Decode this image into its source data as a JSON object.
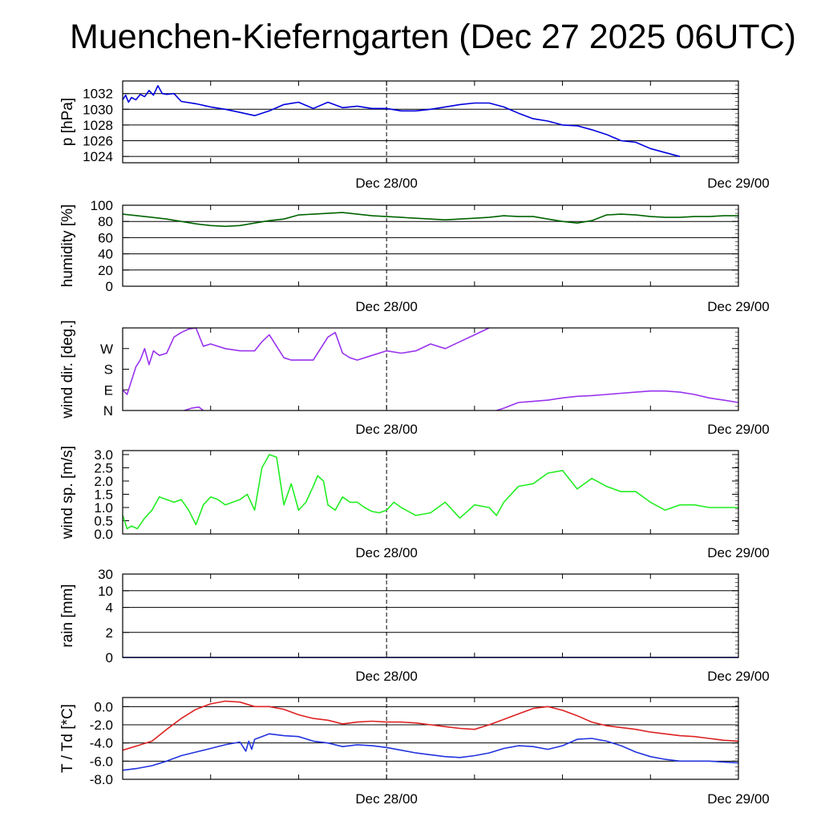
{
  "title": "Muenchen-Kieferngarten (Dec 27 2025 06UTC)",
  "chart_data": [
    {
      "type": "line",
      "id": "pressure",
      "ylabel": "p [hPa]",
      "ylim": [
        1023.2,
        1033.6
      ],
      "yticks": [
        "1024",
        "1026",
        "1028",
        "1030",
        "1032"
      ],
      "ytick_values": [
        1024,
        1026,
        1028,
        1030,
        1032
      ],
      "grid": true,
      "x_unit": "hours since Dec 27 06UTC",
      "xlim": [
        0,
        42
      ],
      "xtick_labels": [
        {
          "x": 18,
          "label": "Dec 28/00"
        },
        {
          "x": 42,
          "label": "Dec 29/00"
        }
      ],
      "series": [
        {
          "name": "p",
          "color": "#0000dd",
          "x": [
            0,
            0.2,
            0.4,
            0.6,
            0.9,
            1.2,
            1.5,
            1.8,
            2.1,
            2.4,
            2.7,
            3,
            3.5,
            4,
            5,
            6,
            7,
            8,
            9,
            10,
            11,
            12,
            13,
            14,
            15,
            16,
            17,
            18,
            19,
            20,
            21,
            22,
            23,
            24,
            25,
            26,
            27,
            28,
            29,
            30,
            31,
            32,
            33,
            34,
            35,
            36,
            37,
            38,
            39,
            40,
            41,
            42
          ],
          "values": [
            1031.2,
            1031.8,
            1030.9,
            1031.5,
            1031.2,
            1031.9,
            1031.6,
            1032.4,
            1031.8,
            1033,
            1032,
            1031.9,
            1032,
            1031,
            1030.7,
            1030.3,
            1030,
            1029.6,
            1029.2,
            1029.8,
            1030.6,
            1030.9,
            1030.1,
            1030.9,
            1030.2,
            1030.4,
            1030.1,
            1030.1,
            1029.8,
            1029.8,
            1030,
            1030.3,
            1030.6,
            1030.8,
            1030.8,
            1030.3,
            1029.5,
            1028.8,
            1028.5,
            1028,
            1027.9,
            1027.4,
            1026.8,
            1026,
            1025.8,
            1025,
            1024.5,
            1024,
            null,
            null,
            null,
            null
          ]
        }
      ]
    },
    {
      "type": "line",
      "id": "humidity",
      "ylabel": "humidity [%]",
      "ylim": [
        0,
        100
      ],
      "yticks": [
        "0",
        "20",
        "40",
        "60",
        "80",
        "100"
      ],
      "ytick_values": [
        0,
        20,
        40,
        60,
        80,
        100
      ],
      "grid": true,
      "xlim": [
        0,
        42
      ],
      "xtick_labels": [
        {
          "x": 18,
          "label": "Dec 28/00"
        },
        {
          "x": 42,
          "label": "Dec 29/00"
        }
      ],
      "series": [
        {
          "name": "humidity",
          "color": "#006400",
          "x": [
            0,
            1,
            2,
            3,
            4,
            5,
            6,
            7,
            8,
            9,
            10,
            11,
            12,
            13,
            14,
            15,
            16,
            17,
            18,
            19,
            20,
            21,
            22,
            23,
            24,
            25,
            26,
            27,
            28,
            29,
            30,
            31,
            32,
            33,
            34,
            35,
            36,
            37,
            38,
            39,
            40,
            41,
            42
          ],
          "values": [
            89,
            87,
            85,
            83,
            80,
            77,
            75,
            74,
            75,
            78,
            81,
            83,
            88,
            89,
            90,
            91,
            89,
            87,
            86,
            85,
            84,
            83,
            82,
            83,
            84,
            85,
            87,
            86,
            86,
            83,
            80,
            78,
            81,
            88,
            89,
            88,
            86,
            85,
            85,
            86,
            86,
            87,
            87
          ]
        }
      ]
    },
    {
      "type": "line",
      "id": "wind-direction",
      "ylabel": "wind dir. [deg.]",
      "ylim": [
        0,
        360
      ],
      "yticks": [
        "N",
        "E",
        "S",
        "W"
      ],
      "ytick_values": [
        0,
        90,
        180,
        270
      ],
      "grid": false,
      "xlim": [
        0,
        42
      ],
      "xtick_labels": [
        {
          "x": 18,
          "label": "Dec 28/00"
        },
        {
          "x": 42,
          "label": "Dec 29/00"
        }
      ],
      "series": [
        {
          "name": "dir-main",
          "color": "#9933ee",
          "x": [
            0,
            0.3,
            0.6,
            0.9,
            1.2,
            1.5,
            1.8,
            2.1,
            2.5,
            3,
            3.5,
            4,
            4.5,
            5,
            5.5,
            6,
            7,
            8,
            9,
            9.5,
            10,
            10.5,
            11,
            11.5,
            12,
            13,
            14,
            14.5,
            15,
            15.5,
            16,
            17,
            18,
            19,
            20,
            21,
            22,
            23,
            24,
            25,
            26,
            27,
            28,
            29,
            30,
            30.5
          ],
          "values": [
            90,
            70,
            130,
            190,
            220,
            270,
            200,
            260,
            240,
            250,
            320,
            340,
            355,
            365,
            280,
            290,
            270,
            260,
            260,
            300,
            330,
            280,
            230,
            220,
            220,
            220,
            320,
            340,
            250,
            230,
            220,
            240,
            260,
            250,
            260,
            290,
            270,
            300,
            330,
            360,
            null,
            null,
            null,
            null,
            null,
            null
          ]
        },
        {
          "name": "dir-wrap-low",
          "color": "#9933ee",
          "x": [
            4.2,
            4.7,
            5.2,
            5.5
          ],
          "values": [
            0,
            10,
            15,
            0
          ]
        },
        {
          "name": "dir-late",
          "color": "#9933ee",
          "x": [
            25.5,
            26,
            27,
            28,
            29,
            30,
            31,
            32,
            33,
            34,
            35,
            36,
            37,
            38,
            39,
            40,
            41,
            42
          ],
          "values": [
            0,
            10,
            35,
            40,
            45,
            55,
            62,
            65,
            70,
            75,
            80,
            85,
            85,
            80,
            70,
            55,
            45,
            35
          ]
        }
      ]
    },
    {
      "type": "line",
      "id": "wind-speed",
      "ylabel": "wind sp. [m/s]",
      "ylim": [
        0,
        3.15
      ],
      "yticks": [
        "0.0",
        "0.5",
        "1.0",
        "1.5",
        "2.0",
        "2.5",
        "3.0"
      ],
      "ytick_values": [
        0,
        0.5,
        1,
        1.5,
        2,
        2.5,
        3
      ],
      "grid": false,
      "xlim": [
        0,
        42
      ],
      "xtick_labels": [
        {
          "x": 18,
          "label": "Dec 28/00"
        },
        {
          "x": 42,
          "label": "Dec 29/00"
        }
      ],
      "series": [
        {
          "name": "wind speed",
          "color": "#22ee22",
          "x": [
            0,
            0.3,
            0.6,
            1,
            1.5,
            2,
            2.5,
            3,
            3.5,
            4,
            4.5,
            5,
            5.5,
            6,
            6.5,
            7,
            7.5,
            8,
            8.5,
            9,
            9.5,
            10,
            10.5,
            11,
            11.5,
            12,
            12.5,
            13,
            13.3,
            13.7,
            14,
            14.5,
            15,
            15.5,
            16,
            16.5,
            17,
            17.5,
            18,
            18.5,
            19,
            20,
            21,
            22,
            23,
            24,
            25,
            25.5,
            26,
            27,
            28,
            29,
            30,
            31,
            32,
            33,
            34,
            35,
            36,
            37,
            38,
            39,
            40,
            41,
            42
          ],
          "values": [
            0.7,
            0.2,
            0.3,
            0.2,
            0.6,
            0.9,
            1.4,
            1.3,
            1.2,
            1.3,
            0.9,
            0.35,
            1.1,
            1.4,
            1.3,
            1.1,
            1.2,
            1.3,
            1.5,
            0.9,
            2.5,
            3.0,
            2.9,
            1.1,
            1.9,
            0.9,
            1.2,
            1.8,
            2.2,
            2.0,
            1.1,
            0.9,
            1.4,
            1.2,
            1.2,
            1.0,
            0.85,
            0.8,
            0.9,
            1.2,
            1.0,
            0.7,
            0.8,
            1.2,
            0.6,
            1.1,
            1.0,
            0.7,
            1.2,
            1.8,
            1.9,
            2.3,
            2.4,
            1.7,
            2.1,
            1.8,
            1.6,
            1.6,
            1.2,
            0.9,
            1.1,
            1.1,
            1.0,
            1.0,
            1.0
          ]
        }
      ]
    },
    {
      "type": "line",
      "id": "rain",
      "ylabel": "rain [mm]",
      "ylim": [
        0,
        1
      ],
      "yticks": [
        "0",
        "2",
        "4",
        "10",
        "30"
      ],
      "ytick_values": [
        0,
        0.3,
        0.6,
        0.8,
        1.0
      ],
      "grid": true,
      "xlim": [
        0,
        42
      ],
      "xtick_labels": [
        {
          "x": 18,
          "label": "Dec 28/00"
        },
        {
          "x": 42,
          "label": "Dec 29/00"
        }
      ],
      "series": [
        {
          "name": "rain",
          "color": "#0000dd",
          "x": [
            0,
            42
          ],
          "values": [
            0,
            0
          ]
        }
      ]
    },
    {
      "type": "line",
      "id": "temperature",
      "ylabel": "T / Td [*C]",
      "ylim": [
        -8.0,
        1.0
      ],
      "yticks": [
        "-8.0",
        "-6.0",
        "-4.0",
        "-2.0",
        "0.0"
      ],
      "ytick_values": [
        -8,
        -6,
        -4,
        -2,
        0
      ],
      "grid": true,
      "xlim": [
        0,
        42
      ],
      "xtick_labels": [
        {
          "x": 18,
          "label": "Dec 28/00"
        },
        {
          "x": 42,
          "label": "Dec 29/00"
        }
      ],
      "series": [
        {
          "name": "T",
          "color": "#dd2222",
          "x": [
            0,
            1,
            2,
            3,
            4,
            5,
            6,
            7,
            8,
            9,
            10,
            11,
            12,
            13,
            14,
            15,
            16,
            17,
            18,
            19,
            20,
            21,
            22,
            23,
            24,
            25,
            26,
            27,
            28,
            29,
            30,
            31,
            32,
            33,
            34,
            35,
            36,
            37,
            38,
            39,
            40,
            41,
            42
          ],
          "values": [
            -4.8,
            -4.3,
            -3.8,
            -2.5,
            -1.3,
            -0.3,
            0.3,
            0.6,
            0.5,
            0.0,
            0.0,
            -0.3,
            -0.9,
            -1.3,
            -1.5,
            -1.9,
            -1.7,
            -1.6,
            -1.7,
            -1.7,
            -1.8,
            -2.0,
            -2.2,
            -2.4,
            -2.5,
            -2.0,
            -1.4,
            -0.8,
            -0.2,
            0.0,
            -0.4,
            -1.0,
            -1.7,
            -2.1,
            -2.3,
            -2.5,
            -2.8,
            -3.0,
            -3.2,
            -3.3,
            -3.5,
            -3.7,
            -3.8
          ]
        },
        {
          "name": "Td",
          "color": "#2233dd",
          "x": [
            0,
            1,
            2,
            3,
            4,
            5,
            6,
            7,
            8,
            8.4,
            8.6,
            8.8,
            9,
            9.5,
            10,
            11,
            12,
            13,
            14,
            15,
            16,
            17,
            18,
            19,
            20,
            21,
            22,
            23,
            24,
            25,
            26,
            27,
            28,
            29,
            30,
            31,
            32,
            33,
            34,
            35,
            36,
            37,
            38,
            39,
            40,
            41,
            42
          ],
          "values": [
            -7.0,
            -6.8,
            -6.5,
            -6.0,
            -5.4,
            -5.0,
            -4.6,
            -4.2,
            -3.9,
            -4.9,
            -3.8,
            -4.7,
            -3.6,
            -3.3,
            -3.0,
            -3.2,
            -3.3,
            -3.8,
            -4.0,
            -4.4,
            -4.2,
            -4.3,
            -4.5,
            -4.8,
            -5.1,
            -5.3,
            -5.5,
            -5.6,
            -5.4,
            -5.1,
            -4.6,
            -4.3,
            -4.4,
            -4.7,
            -4.3,
            -3.6,
            -3.5,
            -3.8,
            -4.3,
            -5.0,
            -5.5,
            -5.8,
            -6.0,
            -6.0,
            -6.0,
            -6.1,
            -6.2
          ]
        }
      ]
    }
  ]
}
